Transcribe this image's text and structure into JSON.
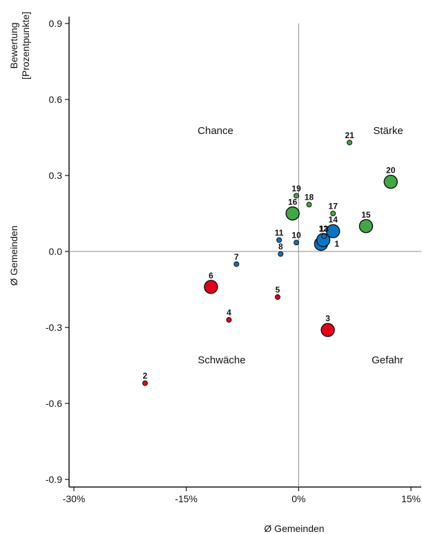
{
  "chart_data": {
    "type": "scatter",
    "xlabel": "Ø Gemeinden",
    "ylabel_lines": [
      "Bewertung",
      "[Prozentpunkte]"
    ],
    "ylabel_secondary": "Ø Gemeinden",
    "xlim": [
      -30,
      17
    ],
    "ylim": [
      -0.9,
      0.9
    ],
    "x_ticks": [
      -30,
      -15,
      0,
      15
    ],
    "x_tick_labels": [
      "-30%",
      "-15%",
      "0%",
      "15%"
    ],
    "y_ticks": [
      0.9,
      0.6,
      0.3,
      0.0,
      -0.3,
      -0.6,
      -0.9
    ],
    "y_tick_labels": [
      "0.9",
      "0.6",
      "0.3",
      "0.0",
      "-0.3",
      "-0.6",
      "-0.9"
    ],
    "reference_lines": {
      "x": 0,
      "y": 0
    },
    "grid": false,
    "quadrant_labels": {
      "top_left": "Chance",
      "top_right": "Stärke",
      "bottom_left": "Schwäche",
      "bottom_right": "Gefahr"
    },
    "colors": {
      "red": "#e3001b",
      "blue": "#0a74c4",
      "green": "#41a843",
      "axis": "#888888"
    },
    "points": [
      {
        "id": "1",
        "x": 3.0,
        "y": 0.03,
        "size": "large",
        "color": "blue"
      },
      {
        "id": "2",
        "x": -20.5,
        "y": -0.52,
        "size": "small",
        "color": "red"
      },
      {
        "id": "3",
        "x": 3.9,
        "y": -0.31,
        "size": "large",
        "color": "red"
      },
      {
        "id": "4",
        "x": -9.3,
        "y": -0.27,
        "size": "small",
        "color": "red"
      },
      {
        "id": "5",
        "x": -2.8,
        "y": -0.18,
        "size": "small",
        "color": "red"
      },
      {
        "id": "6",
        "x": -11.7,
        "y": -0.14,
        "size": "large",
        "color": "red"
      },
      {
        "id": "7",
        "x": -8.3,
        "y": -0.05,
        "size": "small",
        "color": "blue"
      },
      {
        "id": "8",
        "x": -2.4,
        "y": -0.01,
        "size": "small",
        "color": "blue"
      },
      {
        "id": "10",
        "x": -0.3,
        "y": 0.035,
        "size": "small",
        "color": "blue"
      },
      {
        "id": "11",
        "x": -2.6,
        "y": 0.045,
        "size": "small",
        "color": "blue"
      },
      {
        "id": "12",
        "x": 3.3,
        "y": 0.045,
        "size": "large",
        "color": "blue"
      },
      {
        "id": "13",
        "x": 3.4,
        "y": 0.06,
        "size": "small",
        "color": "blue"
      },
      {
        "id": "14",
        "x": 4.6,
        "y": 0.08,
        "size": "large",
        "color": "blue"
      },
      {
        "id": "15",
        "x": 9.0,
        "y": 0.1,
        "size": "large",
        "color": "green"
      },
      {
        "id": "16",
        "x": -0.8,
        "y": 0.15,
        "size": "large",
        "color": "green"
      },
      {
        "id": "17",
        "x": 4.6,
        "y": 0.15,
        "size": "small",
        "color": "green"
      },
      {
        "id": "18",
        "x": 1.4,
        "y": 0.185,
        "size": "small",
        "color": "green"
      },
      {
        "id": "19",
        "x": -0.3,
        "y": 0.22,
        "size": "small",
        "color": "green"
      },
      {
        "id": "20",
        "x": 12.3,
        "y": 0.275,
        "size": "large",
        "color": "green"
      },
      {
        "id": "21",
        "x": 6.8,
        "y": 0.43,
        "size": "small",
        "color": "green"
      }
    ]
  }
}
